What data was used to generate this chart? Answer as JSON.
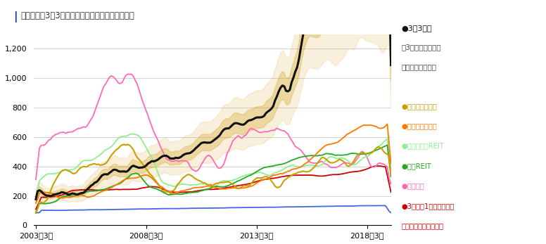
{
  "title": "各資産と「3倍3分法」のシミュレーションの推移",
  "title_bar_color": "#1a5276",
  "xlabel_ticks": [
    "2003年3月",
    "2008年3月",
    "2013年3月",
    "2018年3月"
  ],
  "xlabel_tick_positions": [
    0,
    60,
    120,
    180
  ],
  "ylim": [
    0,
    1300
  ],
  "yticks": [
    0,
    200,
    400,
    600,
    800,
    1000,
    1200
  ],
  "ytick_labels": [
    "0",
    "200",
    "400",
    "600",
    "800",
    "1,000",
    "1,200"
  ],
  "n_points": 194,
  "background_color": "#ffffff",
  "legend_top_label_line1": "●3倍3分法",
  "legend_top_label_line2": "  （3倍バランス）の",
  "legend_top_label_line3": "  シミュレーション",
  "legend_items": [
    {
      "●海外新興国株式": "#c8a000"
    },
    {
      "●海外先進国株式": "#ff7700"
    },
    {
      "●海外先進国REIT": "#90ee90"
    },
    {
      "●日本REIT": "#22aa22"
    },
    {
      "●日本株式": "#ff69b4"
    },
    {
      "●3分法（1倍バランス）": "#cc0000"
    },
    {
      "ノシミュレーション": "#cc0000"
    },
    {
      "●世界国債": "#4169e1"
    }
  ],
  "colors": {
    "triple3": "#111111",
    "emerging": "#c8a000",
    "developed": "#ff7700",
    "reit_global": "#90ee90",
    "reit_japan": "#22aa22",
    "japan_stock": "#ff69b4",
    "single3": "#cc0000",
    "bond": "#4169e1"
  },
  "halo_color": "#d4a017",
  "halo_alpha": 0.3
}
